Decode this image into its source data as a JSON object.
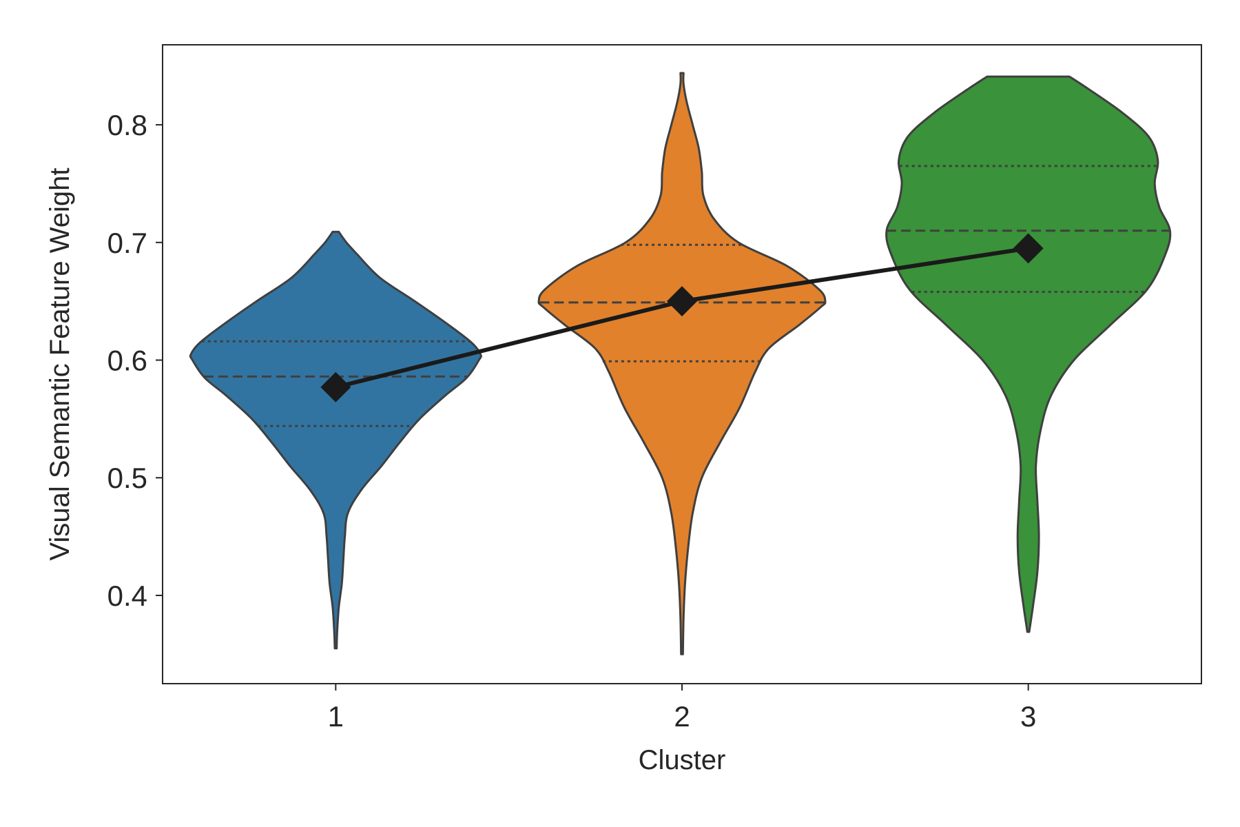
{
  "chart_data": {
    "type": "violin",
    "xlabel": "Cluster",
    "ylabel": "Visual Semantic Feature Weight",
    "categories": [
      "1",
      "2",
      "3"
    ],
    "ylim": [
      0.325,
      0.868
    ],
    "yticks": [
      0.4,
      0.5,
      0.6,
      0.7,
      0.8
    ],
    "ytick_labels": [
      "0.4",
      "0.5",
      "0.6",
      "0.7",
      "0.8"
    ],
    "grid": false,
    "legend": "none",
    "colors": [
      "#3274a1",
      "#e1812c",
      "#3a923a"
    ],
    "violins": [
      {
        "category": "1",
        "min": 0.355,
        "max": 0.709,
        "q1": 0.544,
        "median": 0.586,
        "q3": 0.616,
        "profile": [
          [
            0.355,
            0.0
          ],
          [
            0.37,
            0.01
          ],
          [
            0.39,
            0.02
          ],
          [
            0.41,
            0.04
          ],
          [
            0.43,
            0.05
          ],
          [
            0.45,
            0.06
          ],
          [
            0.47,
            0.08
          ],
          [
            0.49,
            0.17
          ],
          [
            0.51,
            0.3
          ],
          [
            0.53,
            0.42
          ],
          [
            0.55,
            0.55
          ],
          [
            0.57,
            0.72
          ],
          [
            0.585,
            0.86
          ],
          [
            0.6,
            0.94
          ],
          [
            0.605,
            0.95
          ],
          [
            0.615,
            0.89
          ],
          [
            0.63,
            0.74
          ],
          [
            0.65,
            0.52
          ],
          [
            0.67,
            0.29
          ],
          [
            0.69,
            0.14
          ],
          [
            0.7,
            0.07
          ],
          [
            0.709,
            0.02
          ]
        ]
      },
      {
        "category": "2",
        "min": 0.35,
        "max": 0.844,
        "q1": 0.599,
        "median": 0.649,
        "q3": 0.698,
        "profile": [
          [
            0.35,
            0.0
          ],
          [
            0.38,
            0.01
          ],
          [
            0.41,
            0.02
          ],
          [
            0.44,
            0.04
          ],
          [
            0.47,
            0.07
          ],
          [
            0.5,
            0.13
          ],
          [
            0.53,
            0.25
          ],
          [
            0.56,
            0.38
          ],
          [
            0.59,
            0.48
          ],
          [
            0.61,
            0.57
          ],
          [
            0.63,
            0.77
          ],
          [
            0.645,
            0.91
          ],
          [
            0.65,
            0.94
          ],
          [
            0.66,
            0.9
          ],
          [
            0.68,
            0.69
          ],
          [
            0.7,
            0.37
          ],
          [
            0.72,
            0.21
          ],
          [
            0.74,
            0.14
          ],
          [
            0.76,
            0.13
          ],
          [
            0.78,
            0.11
          ],
          [
            0.8,
            0.07
          ],
          [
            0.82,
            0.03
          ],
          [
            0.835,
            0.01
          ],
          [
            0.844,
            0.01
          ]
        ]
      },
      {
        "category": "3",
        "min": 0.369,
        "max": 0.841,
        "q1": 0.658,
        "median": 0.71,
        "q3": 0.765,
        "profile": [
          [
            0.369,
            0.0
          ],
          [
            0.39,
            0.03
          ],
          [
            0.42,
            0.06
          ],
          [
            0.45,
            0.07
          ],
          [
            0.48,
            0.06
          ],
          [
            0.51,
            0.05
          ],
          [
            0.54,
            0.08
          ],
          [
            0.57,
            0.15
          ],
          [
            0.6,
            0.3
          ],
          [
            0.63,
            0.54
          ],
          [
            0.66,
            0.78
          ],
          [
            0.69,
            0.9
          ],
          [
            0.71,
            0.93
          ],
          [
            0.73,
            0.86
          ],
          [
            0.75,
            0.83
          ],
          [
            0.77,
            0.85
          ],
          [
            0.79,
            0.79
          ],
          [
            0.81,
            0.62
          ],
          [
            0.83,
            0.4
          ],
          [
            0.841,
            0.27
          ]
        ]
      }
    ],
    "mean_line": {
      "marker": "diamond",
      "color": "#1a1a1a",
      "values": [
        0.577,
        0.65,
        0.695
      ]
    }
  }
}
